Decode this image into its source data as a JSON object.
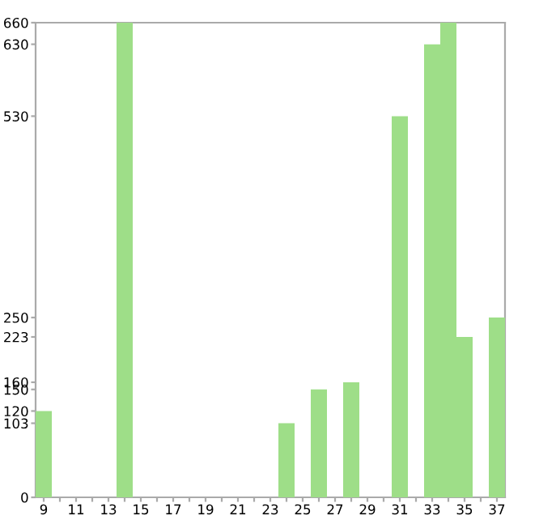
{
  "chart_data": {
    "type": "bar",
    "categories": [
      "9",
      null,
      "11",
      null,
      "13",
      null,
      "15",
      null,
      "17",
      null,
      "19",
      null,
      "21",
      null,
      "23",
      null,
      "25",
      null,
      "27",
      null,
      "29",
      null,
      "31",
      null,
      "33",
      null,
      "35",
      null,
      "37"
    ],
    "values": [
      120,
      0,
      0,
      0,
      0,
      660,
      0,
      0,
      0,
      0,
      0,
      0,
      0,
      0,
      0,
      103,
      0,
      150,
      0,
      160,
      0,
      0,
      530,
      0,
      630,
      660,
      223,
      0,
      250
    ],
    "color": "#9ede88",
    "ylim": [
      0,
      660
    ],
    "yticks": [
      0,
      103,
      120,
      150,
      160,
      223,
      250,
      530,
      630,
      660
    ],
    "grid": false
  }
}
